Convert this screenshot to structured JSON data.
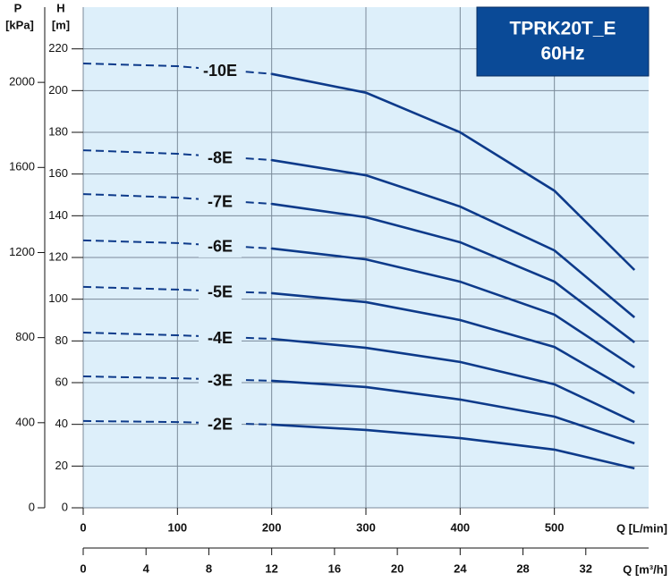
{
  "chart_data": {
    "type": "line",
    "title": "TPRK20T_E",
    "subtitle": "60Hz",
    "y_label": "H",
    "y_unit": "[m]",
    "y2_label": "P",
    "y2_unit": "[kPa]",
    "x_label": "Q [L/min]",
    "x2_label": "Q [m³/h]",
    "x": [
      0,
      100,
      200,
      300,
      400,
      500,
      585
    ],
    "xlim": [
      0,
      600
    ],
    "xticks": [
      0,
      100,
      200,
      300,
      400,
      500
    ],
    "x2lim": [
      0,
      36
    ],
    "x2ticks": [
      0,
      4,
      8,
      12,
      16,
      20,
      24,
      28,
      32
    ],
    "ylim": [
      0,
      240
    ],
    "yticks": [
      0,
      20,
      40,
      60,
      80,
      100,
      120,
      140,
      160,
      180,
      200,
      220
    ],
    "y2lim": [
      0,
      2353.6
    ],
    "y2ticks": [
      0,
      400,
      800,
      1200,
      1600,
      2000
    ],
    "grid": true,
    "color": "#0d3a8a",
    "series": [
      {
        "name": "-10E",
        "values": [
          213,
          211.7,
          208,
          199,
          180,
          152,
          114
        ]
      },
      {
        "name": "-8E",
        "values": [
          171.4,
          169.7,
          166.7,
          159.4,
          144.4,
          123.4,
          91.3
        ]
      },
      {
        "name": "-7E",
        "values": [
          150.4,
          148.7,
          145.7,
          139.3,
          127.3,
          108.4,
          79.3
        ]
      },
      {
        "name": "-6E",
        "values": [
          128.2,
          126.9,
          124.3,
          119.1,
          108.4,
          92.6,
          67.3
        ]
      },
      {
        "name": "-5E",
        "values": [
          105.9,
          104.6,
          102.9,
          98.6,
          90,
          77.1,
          54.9
        ]
      },
      {
        "name": "-4E",
        "values": [
          84,
          82.7,
          81,
          76.7,
          69.9,
          59.2,
          41.1
        ]
      },
      {
        "name": "-3E",
        "values": [
          63,
          62.1,
          60.9,
          57.9,
          51.9,
          43.7,
          30.9
        ]
      },
      {
        "name": "-2E",
        "values": [
          41.6,
          41.1,
          39.9,
          37.3,
          33.4,
          27.9,
          18.9
        ]
      }
    ]
  }
}
